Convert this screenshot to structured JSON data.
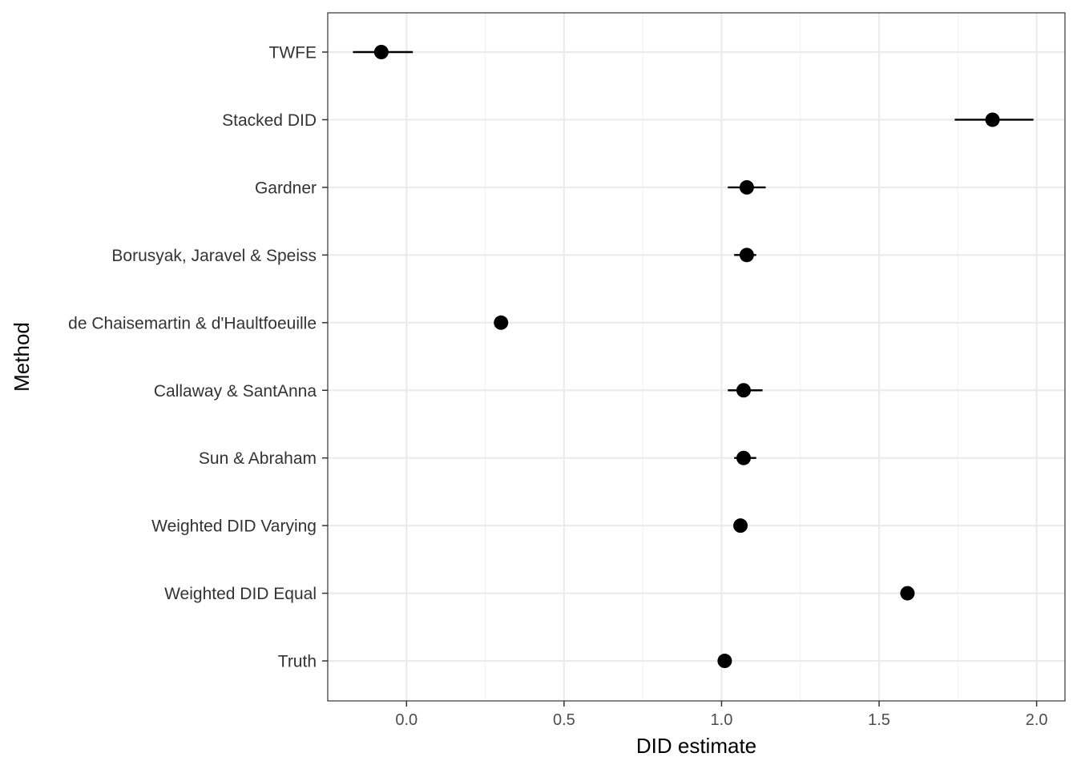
{
  "chart_data": {
    "type": "scatter",
    "title": "",
    "xlabel": "DID estimate",
    "ylabel": "Method",
    "xlim": [
      -0.25,
      2.09
    ],
    "x_ticks": [
      0.0,
      0.5,
      1.0,
      1.5,
      2.0
    ],
    "x_tick_labels": [
      "0.0",
      "0.5",
      "1.0",
      "1.5",
      "2.0"
    ],
    "grid": true,
    "legend": "none",
    "categories": [
      "TWFE",
      "Stacked DID",
      "Gardner",
      "Borusyak, Jaravel & Speiss",
      "de Chaisemartin & d'Haultfoeuille",
      "Callaway & SantAnna",
      "Sun & Abraham",
      "Weighted DID Varying",
      "Weighted DID Equal",
      "Truth"
    ],
    "series": [
      {
        "values": [
          -0.08,
          1.86,
          1.08,
          1.08,
          0.3,
          1.07,
          1.07,
          1.06,
          1.59,
          1.01
        ],
        "lower": [
          -0.17,
          1.74,
          1.02,
          1.04,
          null,
          1.02,
          1.04,
          null,
          null,
          null
        ],
        "upper": [
          0.02,
          1.99,
          1.14,
          1.11,
          null,
          1.13,
          1.11,
          null,
          null,
          null
        ]
      }
    ],
    "colors": {
      "point": "#000000",
      "panel_border": "#333333",
      "grid_major": "#ebebeb",
      "grid_minor": "#f2f2f2"
    }
  }
}
